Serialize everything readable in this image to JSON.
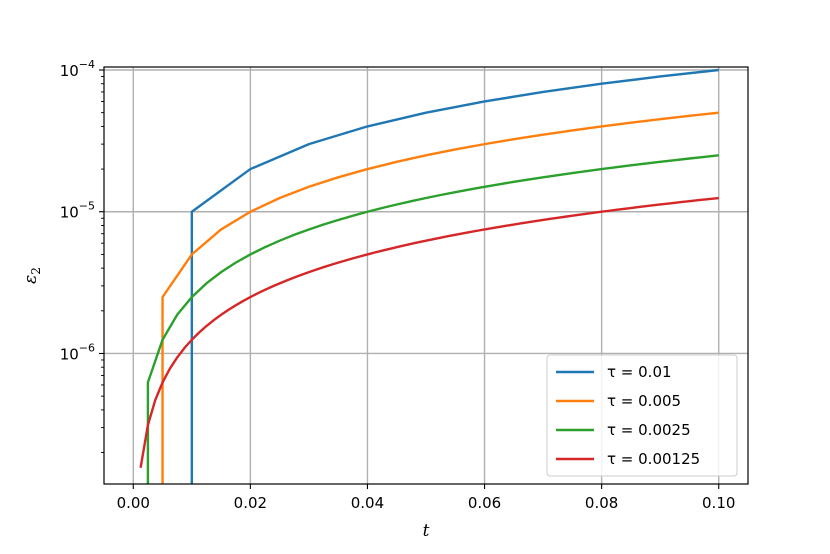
{
  "chart_data": {
    "type": "line",
    "xlabel": "t",
    "ylabel": "ε",
    "ylabel_sub": "2",
    "x_scale": "linear",
    "y_scale": "log",
    "xlim": [
      -0.005,
      0.105
    ],
    "ylim": [
      1.2e-07,
      0.000105
    ],
    "grid": true,
    "legend_position": "lower-right",
    "x_ticks": [
      {
        "value": 0.0,
        "label": "0.00"
      },
      {
        "value": 0.02,
        "label": "0.02"
      },
      {
        "value": 0.04,
        "label": "0.04"
      },
      {
        "value": 0.06,
        "label": "0.06"
      },
      {
        "value": 0.08,
        "label": "0.08"
      },
      {
        "value": 0.1,
        "label": "0.10"
      }
    ],
    "y_ticks": [
      {
        "value": 1e-06,
        "base": "10",
        "exp": "−6"
      },
      {
        "value": 1e-05,
        "base": "10",
        "exp": "−5"
      },
      {
        "value": 0.0001,
        "base": "10",
        "exp": "−4"
      }
    ],
    "series": [
      {
        "name": "τ = 0.01",
        "color": "#1f77b4",
        "tau": 0.01,
        "vertical_from_bottom": true
      },
      {
        "name": "τ = 0.005",
        "color": "#ff7f0e",
        "tau": 0.005,
        "vertical_from_bottom": true
      },
      {
        "name": "τ = 0.0025",
        "color": "#2ca02c",
        "tau": 0.0025,
        "vertical_from_bottom": true
      },
      {
        "name": "τ = 0.00125",
        "color": "#d62728",
        "tau": 0.00125,
        "vertical_from_bottom": false
      }
    ],
    "value_rule": "y = t * tau / 10 for t = tau, 2tau, ..., 0.1"
  }
}
